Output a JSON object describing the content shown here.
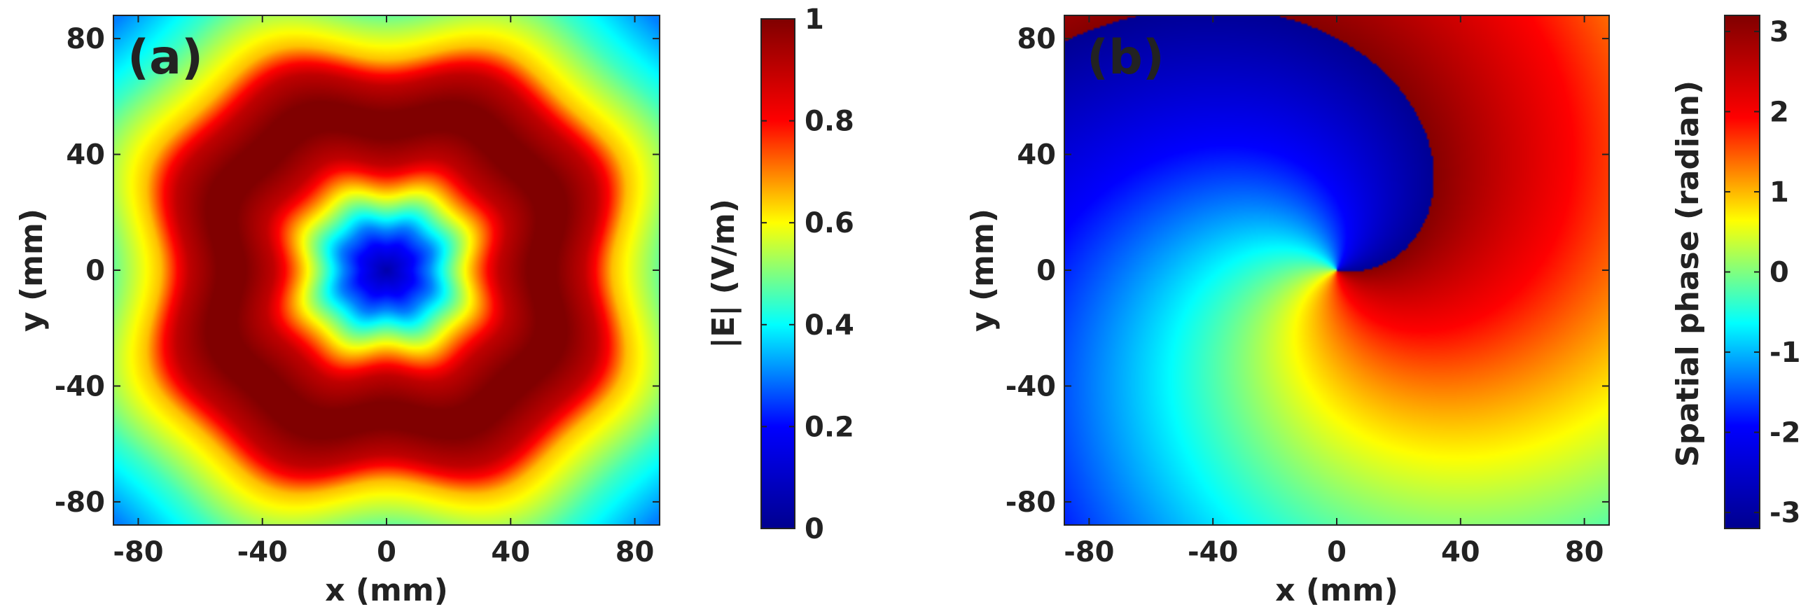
{
  "chart_data": [
    {
      "type": "heatmap",
      "panel_label": "(a)",
      "title": "",
      "xlabel": "x (mm)",
      "ylabel": "y (mm)",
      "xlim": [
        -88,
        88
      ],
      "ylim": [
        -88,
        88
      ],
      "xticks": [
        "-80",
        "-40",
        "0",
        "40",
        "80"
      ],
      "yticks": [
        "80",
        "40",
        "0",
        "-40",
        "-80"
      ],
      "xtick_values": [
        -80,
        -40,
        0,
        40,
        80
      ],
      "ytick_values": [
        80,
        40,
        0,
        -40,
        -80
      ],
      "field": "magnitude",
      "description": "Donut-shaped vortex intensity: minimum at centre, maximum ring between r=35 and r=65 mm",
      "ring_profile": {
        "r_mm": [
          0,
          15,
          30,
          40,
          50,
          60,
          70,
          80,
          100,
          120
        ],
        "value": [
          0.05,
          0.3,
          0.65,
          0.9,
          1.0,
          1.0,
          0.9,
          0.65,
          0.45,
          0.3
        ]
      },
      "colorbar": {
        "label": "|E| (V/m)",
        "range": [
          0,
          1
        ],
        "ticks": [
          "0",
          "0.2",
          "0.4",
          "0.6",
          "0.8",
          "1"
        ],
        "tick_values": [
          0,
          0.2,
          0.4,
          0.6,
          0.8,
          1
        ]
      }
    },
    {
      "type": "heatmap",
      "panel_label": "(b)",
      "title": "",
      "xlabel": "x (mm)",
      "ylabel": "y (mm)",
      "xlim": [
        -88,
        88
      ],
      "ylim": [
        -88,
        88
      ],
      "xticks": [
        "-80",
        "-40",
        "0",
        "40",
        "80"
      ],
      "yticks": [
        "80",
        "40",
        "0",
        "-40",
        "-80"
      ],
      "xtick_values": [
        -80,
        -40,
        0,
        40,
        80
      ],
      "ytick_values": [
        80,
        40,
        0,
        -40,
        -80
      ],
      "field": "phase",
      "description": "Spiral phase profile of an l=1 vortex beam, wrapping from -pi to pi around the centre",
      "topological_charge": 1,
      "colorbar": {
        "label": "Spatial phase (radian)",
        "range": [
          -3.2,
          3.2
        ],
        "ticks": [
          "3",
          "2",
          "1",
          "0",
          "-1",
          "-2",
          "-3"
        ],
        "tick_values": [
          3,
          2,
          1,
          0,
          -1,
          -2,
          -3
        ]
      }
    }
  ],
  "colormap": [
    "#00008f",
    "#0000ff",
    "#00ffff",
    "#ffff00",
    "#ff0000",
    "#800000"
  ]
}
